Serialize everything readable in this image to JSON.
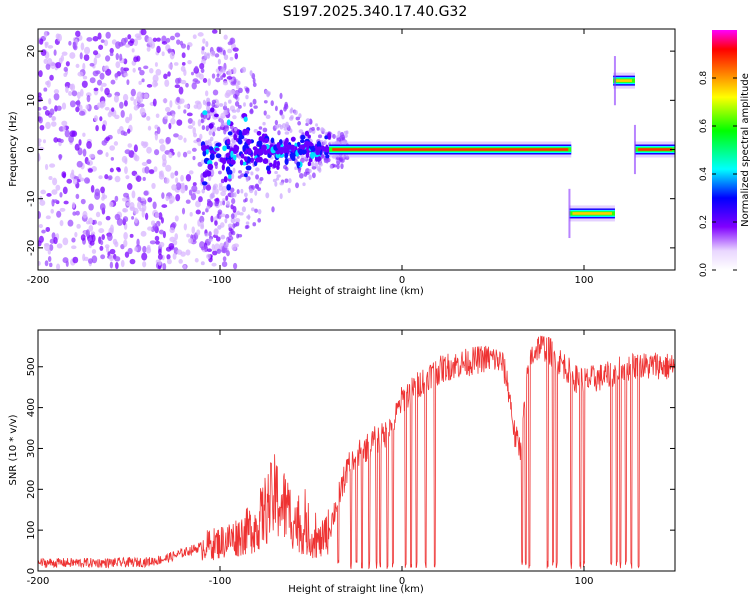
{
  "title": "S197.2025.340.17.40.G32",
  "chart_data": [
    {
      "type": "heatmap",
      "title": "S197.2025.340.17.40.G32",
      "xlabel": "Height of straight line (km)",
      "ylabel": "Frequency (Hz)",
      "xlim": [
        -200,
        150
      ],
      "ylim": [
        -24.5,
        24.5
      ],
      "xticks": [
        -200,
        -100,
        0,
        100
      ],
      "yticks": [
        -20,
        -10,
        0,
        10,
        20
      ],
      "colorbar": {
        "label": "Normalized spectral amplitude",
        "range": [
          0,
          1
        ],
        "ticks": [
          0.0,
          0.2,
          0.4,
          0.6,
          0.8
        ],
        "tick_labels": [
          "0.0",
          "0.2",
          "0.4",
          "0.6",
          "0.8"
        ],
        "colormap": [
          "#ffffff",
          "#8000ff",
          "#0000ff",
          "#00ffff",
          "#00ff00",
          "#ffff00",
          "#ff8000",
          "#ff0000",
          "#ff00ff"
        ]
      },
      "features": [
        {
          "name": "noise-field",
          "x_range": [
            -200,
            -110
          ],
          "f_range": [
            -24,
            24
          ],
          "amplitude": 0.1
        },
        {
          "name": "scatter-cluster",
          "x_range": [
            -110,
            -40
          ],
          "f_range": [
            -10,
            10
          ],
          "amplitude": 0.2
        },
        {
          "name": "main-line",
          "x_range": [
            -40,
            93
          ],
          "frequency": 0,
          "amplitude": 0.9
        },
        {
          "name": "negative-shift",
          "x_range": [
            92,
            117
          ],
          "frequency": -13,
          "amplitude": 0.85
        },
        {
          "name": "positive-shift",
          "x_range": [
            116,
            128
          ],
          "frequency": 14,
          "amplitude": 0.8
        },
        {
          "name": "tail-line",
          "x_range": [
            128,
            150
          ],
          "frequency": 0,
          "amplitude": 1.0
        }
      ]
    },
    {
      "type": "line",
      "xlabel": "Height of straight line (km)",
      "ylabel": "SNR (10 * v/v)",
      "xlim": [
        -200,
        150
      ],
      "ylim": [
        0,
        590
      ],
      "xticks": [
        -200,
        -100,
        0,
        100
      ],
      "yticks": [
        0,
        100,
        200,
        300,
        400,
        500
      ],
      "series_color": "#ee3333",
      "series": [
        {
          "name": "SNR",
          "x": [
            -200,
            -180,
            -160,
            -140,
            -130,
            -120,
            -110,
            -100,
            -90,
            -80,
            -75,
            -70,
            -65,
            -60,
            -55,
            -50,
            -45,
            -40,
            -35,
            -30,
            -25,
            -20,
            -15,
            -10,
            -5,
            0,
            5,
            10,
            15,
            20,
            25,
            30,
            35,
            40,
            45,
            50,
            55,
            58,
            60,
            62,
            65,
            70,
            75,
            80,
            85,
            90,
            93,
            96,
            100,
            105,
            110,
            115,
            120,
            125,
            130,
            135,
            140,
            145,
            150
          ],
          "values": [
            20,
            20,
            20,
            22,
            30,
            45,
            60,
            70,
            85,
            110,
            150,
            180,
            160,
            130,
            100,
            80,
            70,
            100,
            180,
            250,
            280,
            300,
            320,
            330,
            360,
            420,
            440,
            460,
            480,
            490,
            500,
            505,
            510,
            515,
            520,
            520,
            510,
            460,
            400,
            330,
            300,
            520,
            550,
            545,
            520,
            500,
            480,
            470,
            465,
            470,
            475,
            480,
            495,
            500,
            505,
            500,
            505,
            500,
            500
          ]
        }
      ],
      "dropouts": [
        -35,
        -28,
        -25,
        -22,
        -18,
        -14,
        -12,
        -8,
        -5,
        2,
        5,
        8,
        13,
        18,
        66,
        68,
        70,
        80,
        83,
        85,
        93,
        98,
        100,
        115,
        118,
        120,
        123,
        126,
        130
      ]
    }
  ]
}
